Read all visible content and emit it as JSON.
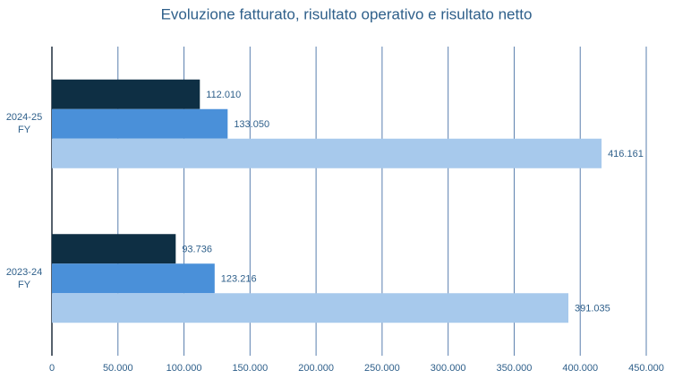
{
  "chart_data": {
    "type": "hbar",
    "title": "Evoluzione fatturato, risultato operativo e risultato netto",
    "categories": [
      "2024-25 FY",
      "2023-24 FY"
    ],
    "series": [
      {
        "color": "#0e2f44",
        "values": [
          112010,
          93736
        ],
        "value_labels": [
          "112.010",
          "93.736"
        ]
      },
      {
        "color": "#4a90d9",
        "values": [
          133050,
          123216
        ],
        "value_labels": [
          "133.050",
          "123.216"
        ]
      },
      {
        "color": "#a7c9ec",
        "values": [
          416161,
          391035
        ],
        "value_labels": [
          "416.161",
          "391.035"
        ]
      }
    ],
    "xlim": [
      0,
      450000
    ],
    "xticks": [
      0,
      {
        "value": 50000,
        "label": "50.000"
      },
      {
        "value": 100000,
        "label": "100.000"
      },
      {
        "value": 150000,
        "label": "150.000"
      },
      {
        "value": 200000,
        "label": "200.000"
      },
      {
        "value": 250000,
        "label": "250.000"
      },
      {
        "value": 300000,
        "label": "300.000"
      },
      {
        "value": 350000,
        "label": "350.000"
      },
      {
        "value": 400000,
        "label": "400.000"
      },
      {
        "value": 450000,
        "label": "450.000"
      }
    ],
    "grid": true
  }
}
